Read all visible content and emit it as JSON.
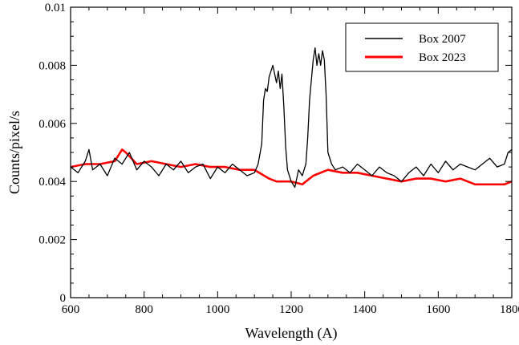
{
  "chart_data": {
    "type": "line",
    "title": "",
    "xlabel": "Wavelength (A)",
    "ylabel": "Counts/pixel/s",
    "xlim": [
      600,
      1800
    ],
    "ylim": [
      0,
      0.01
    ],
    "x_ticks": [
      600,
      800,
      1000,
      1200,
      1400,
      1600,
      1800
    ],
    "x_tick_labels": [
      "600",
      "800",
      "1000",
      "1200",
      "1400",
      "1600",
      "1800"
    ],
    "y_ticks": [
      0,
      0.002,
      0.004,
      0.006,
      0.008,
      0.01
    ],
    "y_tick_labels": [
      "0",
      "0.002",
      "0.004",
      "0.006",
      "0.008",
      "0.01"
    ],
    "grid": false,
    "legend_position": "top-right",
    "series": [
      {
        "name": "Box 2007",
        "color": "#000000",
        "x": [
          600,
          620,
          640,
          650,
          660,
          680,
          700,
          720,
          740,
          760,
          780,
          800,
          820,
          840,
          860,
          880,
          900,
          920,
          940,
          960,
          980,
          1000,
          1020,
          1040,
          1060,
          1080,
          1100,
          1110,
          1120,
          1125,
          1130,
          1135,
          1140,
          1150,
          1160,
          1165,
          1170,
          1175,
          1180,
          1185,
          1190,
          1195,
          1200,
          1210,
          1220,
          1230,
          1240,
          1245,
          1250,
          1255,
          1260,
          1265,
          1270,
          1275,
          1280,
          1285,
          1290,
          1295,
          1300,
          1310,
          1320,
          1340,
          1360,
          1380,
          1400,
          1420,
          1440,
          1460,
          1480,
          1500,
          1520,
          1540,
          1560,
          1580,
          1600,
          1620,
          1640,
          1660,
          1680,
          1700,
          1720,
          1740,
          1760,
          1780,
          1790,
          1800
        ],
        "values": [
          0.0045,
          0.0043,
          0.0047,
          0.0051,
          0.0044,
          0.0046,
          0.0042,
          0.0048,
          0.0046,
          0.005,
          0.0044,
          0.0047,
          0.0045,
          0.0042,
          0.0046,
          0.0044,
          0.0047,
          0.0043,
          0.0045,
          0.0046,
          0.0041,
          0.0045,
          0.0043,
          0.0046,
          0.0044,
          0.0042,
          0.0043,
          0.0046,
          0.0053,
          0.0068,
          0.0072,
          0.0071,
          0.0076,
          0.008,
          0.0074,
          0.0078,
          0.0072,
          0.0077,
          0.0066,
          0.0052,
          0.0044,
          0.0042,
          0.004,
          0.0038,
          0.0044,
          0.0042,
          0.0046,
          0.0055,
          0.0068,
          0.0075,
          0.0082,
          0.0086,
          0.008,
          0.0084,
          0.008,
          0.0085,
          0.0082,
          0.007,
          0.005,
          0.0046,
          0.0044,
          0.0045,
          0.0043,
          0.0046,
          0.0044,
          0.0042,
          0.0045,
          0.0043,
          0.0042,
          0.004,
          0.0043,
          0.0045,
          0.0042,
          0.0046,
          0.0043,
          0.0047,
          0.0044,
          0.0046,
          0.0045,
          0.0044,
          0.0046,
          0.0048,
          0.0045,
          0.0046,
          0.005,
          0.0051
        ]
      },
      {
        "name": "Box 2023",
        "color": "#ff0000",
        "x": [
          600,
          640,
          680,
          720,
          740,
          750,
          780,
          820,
          860,
          900,
          940,
          980,
          1020,
          1060,
          1100,
          1140,
          1160,
          1180,
          1200,
          1230,
          1260,
          1300,
          1340,
          1380,
          1420,
          1460,
          1500,
          1540,
          1580,
          1620,
          1660,
          1700,
          1740,
          1780,
          1800
        ],
        "values": [
          0.0045,
          0.0046,
          0.0046,
          0.0047,
          0.0051,
          0.005,
          0.0046,
          0.0047,
          0.0046,
          0.0045,
          0.0046,
          0.0045,
          0.0045,
          0.0044,
          0.0044,
          0.0041,
          0.004,
          0.004,
          0.004,
          0.0039,
          0.0042,
          0.0044,
          0.0043,
          0.0043,
          0.0042,
          0.0041,
          0.004,
          0.0041,
          0.0041,
          0.004,
          0.0041,
          0.0039,
          0.0039,
          0.0039,
          0.004
        ]
      }
    ]
  }
}
